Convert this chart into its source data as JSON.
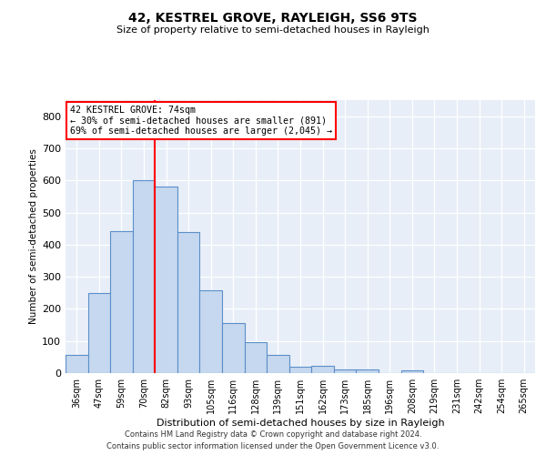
{
  "title": "42, KESTREL GROVE, RAYLEIGH, SS6 9TS",
  "subtitle": "Size of property relative to semi-detached houses in Rayleigh",
  "xlabel": "Distribution of semi-detached houses by size in Rayleigh",
  "ylabel": "Number of semi-detached properties",
  "categories": [
    "36sqm",
    "47sqm",
    "59sqm",
    "70sqm",
    "82sqm",
    "93sqm",
    "105sqm",
    "116sqm",
    "128sqm",
    "139sqm",
    "151sqm",
    "162sqm",
    "173sqm",
    "185sqm",
    "196sqm",
    "208sqm",
    "219sqm",
    "231sqm",
    "242sqm",
    "254sqm",
    "265sqm"
  ],
  "values": [
    57,
    250,
    443,
    600,
    580,
    438,
    257,
    157,
    97,
    58,
    20,
    22,
    12,
    10,
    0,
    8,
    0,
    0,
    0,
    0,
    0
  ],
  "bar_color": "#c5d8ef",
  "bar_edge_color": "#5b8fc9",
  "red_line_x": 3.5,
  "annotation_text_line1": "42 KESTREL GROVE: 74sqm",
  "annotation_text_line2": "← 30% of semi-detached houses are smaller (891)",
  "annotation_text_line3": "69% of semi-detached houses are larger (2,045) →",
  "ylim": [
    0,
    850
  ],
  "yticks": [
    0,
    100,
    200,
    300,
    400,
    500,
    600,
    700,
    800
  ],
  "bg_color": "#e8eef8",
  "footer_line1": "Contains HM Land Registry data © Crown copyright and database right 2024.",
  "footer_line2": "Contains public sector information licensed under the Open Government Licence v3.0."
}
